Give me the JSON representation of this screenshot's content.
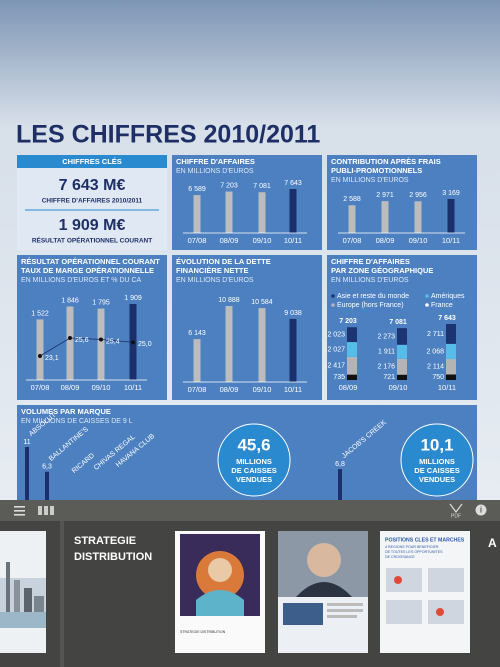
{
  "header": {
    "title": "LES CHIFFRES 2010/2011"
  },
  "key_figures": {
    "title": "CHIFFRES CLÉS",
    "items": [
      {
        "value": "7 643 M€",
        "label": "CHIFFRE D'AFFAIRES 2010/2011"
      },
      {
        "value": "1 909 M€",
        "label": "RÉSULTAT OPÉRATIONNEL COURANT"
      }
    ]
  },
  "revenue": {
    "title": "CHIFFRE D'AFFAIRES",
    "subtitle": "EN MILLIONS D'EUROS",
    "categories": [
      "07/08",
      "08/09",
      "09/10",
      "10/11"
    ],
    "values": [
      6589,
      7203,
      7081,
      7643
    ],
    "value_labels": [
      "6 589",
      "7 203",
      "7 081",
      "7 643"
    ]
  },
  "contribution": {
    "title": "CONTRIBUTION APRÈS FRAIS",
    "title2": "PUBLI-PROMOTIONNELS",
    "subtitle": "EN MILLIONS D'EUROS",
    "categories": [
      "07/08",
      "08/09",
      "09/10",
      "10/11"
    ],
    "values": [
      2588,
      2971,
      2956,
      3169
    ],
    "value_labels": [
      "2 588",
      "2 971",
      "2 956",
      "3 169"
    ]
  },
  "operating": {
    "title": "RÉSULTAT OPÉRATIONNEL COURANT",
    "title2": "TAUX DE MARGE OPÉRATIONNELLE",
    "subtitle": "EN MILLIONS D'EUROS ET % DU CA",
    "categories": [
      "07/08",
      "08/09",
      "09/10",
      "10/11"
    ],
    "values": [
      1522,
      1846,
      1795,
      1909
    ],
    "value_labels": [
      "1 522",
      "1 846",
      "1 795",
      "1 909"
    ],
    "margins": [
      23.1,
      25.6,
      25.4,
      25.0
    ],
    "margin_labels": [
      "23,1",
      "25,6",
      "25,4",
      "25,0"
    ]
  },
  "debt": {
    "title": "ÉVOLUTION DE LA DETTE",
    "title2": "FINANCIÈRE NETTE",
    "subtitle": "EN MILLIONS D'EUROS",
    "categories": [
      "07/08",
      "08/09",
      "09/10",
      "10/11"
    ],
    "values": [
      6143,
      10888,
      10584,
      9038
    ],
    "value_labels": [
      "6 143",
      "10 888",
      "10 584",
      "9 038"
    ]
  },
  "geography": {
    "title": "CHIFFRE D'AFFAIRES",
    "title2": "PAR ZONE GÉOGRAPHIQUE",
    "subtitle": "EN MILLIONS D'EUROS",
    "categories": [
      "08/09",
      "09/10",
      "10/11"
    ],
    "totals": [
      7203,
      7081,
      7643
    ],
    "total_labels": [
      "7 203",
      "7 081",
      "7 643"
    ],
    "series": [
      {
        "name": "Asie et reste du monde",
        "color": "#1c3572",
        "values": [
          2023,
          2273,
          2711
        ],
        "value_labels": [
          "2 023",
          "2 273",
          "2 711"
        ]
      },
      {
        "name": "Amériques",
        "color": "#56bde9",
        "values": [
          2027,
          1911,
          2068
        ],
        "value_labels": [
          "2 027",
          "1 911",
          "2 068"
        ]
      },
      {
        "name": "Europe (hors France)",
        "color": "#b4b4b4",
        "values": [
          2417,
          2176,
          2114
        ],
        "value_labels": [
          "2 417",
          "2 176",
          "2 114"
        ]
      },
      {
        "name": "France",
        "color": "#111111",
        "values": [
          735,
          721,
          750
        ],
        "value_labels": [
          "735",
          "721",
          "750"
        ]
      }
    ]
  },
  "volumes": {
    "title": "VOLUMES PAR MARQUE",
    "subtitle": "EN MILLIONS DE CAISSES DE 9 L",
    "brands": [
      {
        "name": "ABSOLUT",
        "value": 11,
        "label": "11"
      },
      {
        "name": "BALLANTINE'S",
        "value": 6.3,
        "label": "6,3"
      },
      {
        "name": "RICARD"
      },
      {
        "name": "CHIVAS REGAL"
      },
      {
        "name": "HAVANA CLUB"
      },
      {
        "name": "JACOB'S CREEK",
        "value": 6.8,
        "label": "6,8"
      }
    ],
    "bubbles": [
      {
        "value": "45,6",
        "lines": [
          "MILLIONS",
          "DE CAISSES",
          "VENDUES"
        ]
      },
      {
        "value": "10,1",
        "lines": [
          "MILLIONS",
          "DE CAISSES",
          "VENDUES"
        ]
      }
    ]
  },
  "toolbar": {
    "pdf": "PDF"
  },
  "thumbnails": {
    "section": [
      "STRATEGIE",
      "DISTRIBUTION"
    ],
    "cover_caption": "STRATEGIE DISTRIBUTION",
    "page_title": "POSITIONS CLES ET MARCHES",
    "page_subtitle": [
      "4 REGIONS POUR BENEFICIER",
      "DE TOUTES LES OPPORTUNITES",
      "DE CROISSANCE"
    ],
    "next": "A"
  }
}
